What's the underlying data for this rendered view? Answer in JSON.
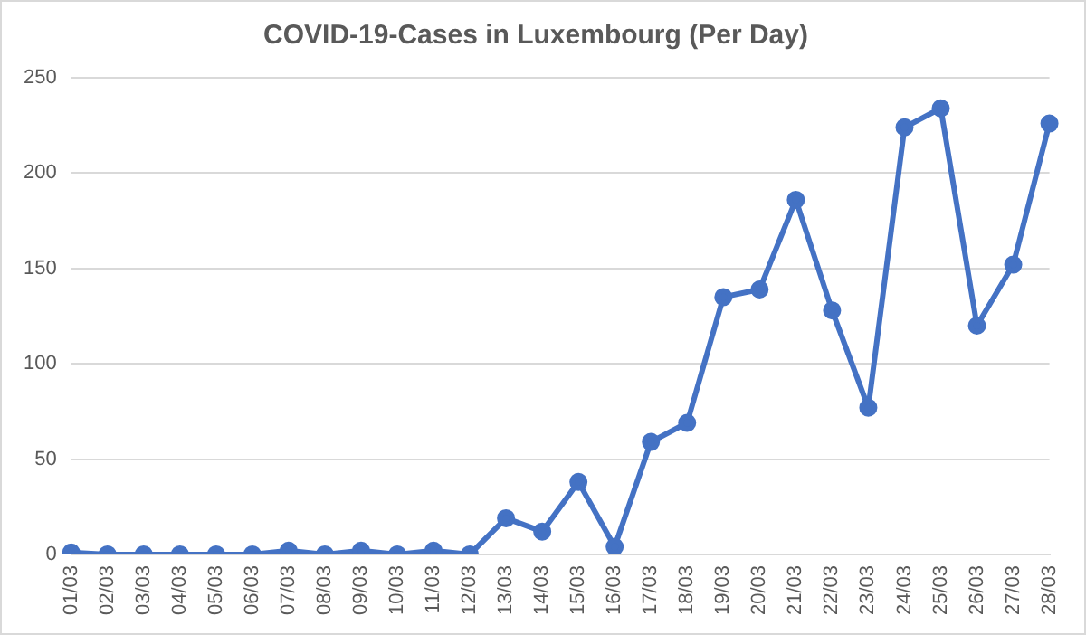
{
  "chart_data": {
    "type": "line",
    "title": "COVID-19-Cases in Luxembourg (Per Day)",
    "categories": [
      "01/03",
      "02/03",
      "03/03",
      "04/03",
      "05/03",
      "06/03",
      "07/03",
      "08/03",
      "09/03",
      "10/03",
      "11/03",
      "12/03",
      "13/03",
      "14/03",
      "15/03",
      "16/03",
      "17/03",
      "18/03",
      "19/03",
      "20/03",
      "21/03",
      "22/03",
      "23/03",
      "24/03",
      "25/03",
      "26/03",
      "27/03",
      "28/03"
    ],
    "series": [
      {
        "color": "#4472c4",
        "values": [
          1,
          0,
          0,
          0,
          0,
          0,
          2,
          0,
          2,
          0,
          2,
          0,
          19,
          12,
          38,
          4,
          59,
          69,
          135,
          139,
          186,
          128,
          77,
          224,
          234,
          120,
          152,
          226
        ]
      }
    ],
    "ylim": [
      0,
      250
    ],
    "yticks": [
      0,
      50,
      100,
      150,
      200,
      250
    ],
    "grid": "y",
    "legend": false,
    "marker": "circle",
    "line_style": "solid"
  }
}
